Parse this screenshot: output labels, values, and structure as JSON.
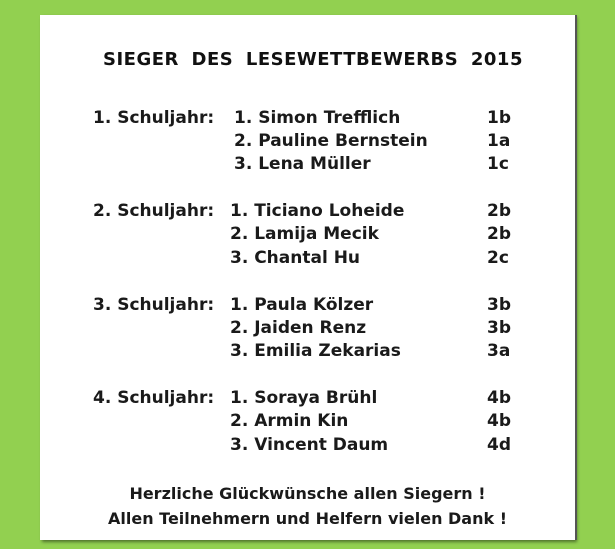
{
  "colors": {
    "border": "#92d050",
    "sheet": "#ffffff",
    "text": "#1a1a1a"
  },
  "title": {
    "part1": "SIEGER",
    "part2": "DES",
    "part3": "LESEWETTBEWERBS",
    "year": "2015"
  },
  "groups": [
    {
      "grade": "1. Schuljahr:",
      "winners": [
        {
          "place_name": "1. Simon Trefflich",
          "class": "1b"
        },
        {
          "place_name": "2. Pauline Bernstein",
          "class": "1a"
        },
        {
          "place_name": "3. Lena Müller",
          "class": "1c"
        }
      ]
    },
    {
      "grade": "2. Schuljahr:",
      "winners": [
        {
          "place_name": "1. Ticiano Loheide",
          "class": "2b"
        },
        {
          "place_name": "2. Lamija Mecik",
          "class": "2b"
        },
        {
          "place_name": "3. Chantal Hu",
          "class": "2c"
        }
      ]
    },
    {
      "grade": "3. Schuljahr:",
      "winners": [
        {
          "place_name": "1. Paula Kölzer",
          "class": "3b"
        },
        {
          "place_name": "2. Jaiden Renz",
          "class": "3b"
        },
        {
          "place_name": "3. Emilia Zekarias",
          "class": "3a"
        }
      ]
    },
    {
      "grade": "4. Schuljahr:",
      "winners": [
        {
          "place_name": "1. Soraya Brühl",
          "class": "4b"
        },
        {
          "place_name": "2. Armin Kin",
          "class": "4b"
        },
        {
          "place_name": "3. Vincent Daum",
          "class": "4d"
        }
      ]
    }
  ],
  "footer": {
    "line1": "Herzliche Glückwünsche  allen Siegern !",
    "line2": "Allen Teilnehmern und  Helfern vielen Dank !"
  }
}
